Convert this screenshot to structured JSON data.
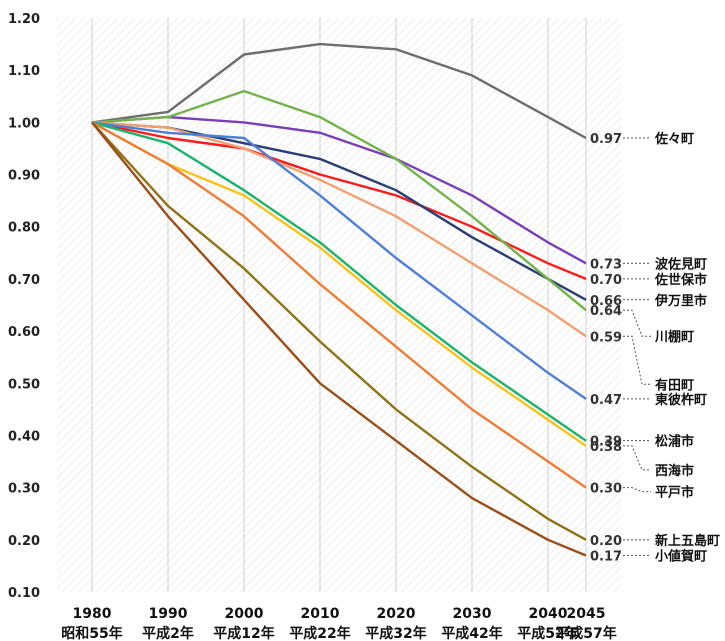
{
  "chart_data": {
    "type": "line",
    "title": "",
    "xlabel": "",
    "ylabel": "",
    "ylim": [
      0.1,
      1.2
    ],
    "yticks": [
      "0.10",
      "0.20",
      "0.30",
      "0.40",
      "0.50",
      "0.60",
      "0.70",
      "0.80",
      "0.90",
      "1.00",
      "1.10",
      "1.20"
    ],
    "x": [
      "1980",
      "1990",
      "2000",
      "2010",
      "2020",
      "2030",
      "2040",
      "2045"
    ],
    "x_era": [
      "昭和55年",
      "平成2年",
      "平成12年",
      "平成22年",
      "平成32年",
      "平成42年",
      "平成52年",
      "平成57年"
    ],
    "grid": "vertical lines on hatched background",
    "series": [
      {
        "name": "佐々町",
        "end_label": "0.97",
        "color": "#6d6d6d",
        "values": [
          1.0,
          1.02,
          1.13,
          1.15,
          1.14,
          1.09,
          1.01,
          0.97
        ]
      },
      {
        "name": "波佐見町",
        "end_label": "0.73",
        "color": "#7a3fb8",
        "values": [
          1.0,
          1.01,
          1.0,
          0.98,
          0.93,
          0.86,
          0.77,
          0.73
        ]
      },
      {
        "name": "佐世保市",
        "end_label": "0.70",
        "color": "#ff1a1a",
        "values": [
          1.0,
          0.97,
          0.95,
          0.9,
          0.86,
          0.8,
          0.73,
          0.7
        ]
      },
      {
        "name": "伊万里市",
        "end_label": "0.66",
        "color": "#2a3f78",
        "values": [
          1.0,
          0.99,
          0.96,
          0.93,
          0.87,
          0.78,
          0.7,
          0.66
        ]
      },
      {
        "name": "川棚町",
        "end_label": "0.64",
        "color": "#72b34a",
        "values": [
          1.0,
          1.01,
          1.06,
          1.01,
          0.93,
          0.82,
          0.7,
          0.64
        ]
      },
      {
        "name": "有田町",
        "end_label": "0.59",
        "color": "#f2a070",
        "values": [
          1.0,
          0.99,
          0.95,
          0.89,
          0.82,
          0.73,
          0.64,
          0.59
        ]
      },
      {
        "name": "東彼杵町",
        "end_label": "0.47",
        "color": "#4f7fd6",
        "values": [
          1.0,
          0.98,
          0.97,
          0.86,
          0.74,
          0.63,
          0.52,
          0.47
        ]
      },
      {
        "name": "松浦市",
        "end_label": "0.39",
        "color": "#1cb36e",
        "values": [
          1.0,
          0.96,
          0.87,
          0.77,
          0.65,
          0.54,
          0.44,
          0.39
        ]
      },
      {
        "name": "西海市",
        "end_label": "0.38",
        "color": "#f7c21a",
        "values": [
          1.0,
          0.92,
          0.86,
          0.76,
          0.64,
          0.53,
          0.43,
          0.38
        ]
      },
      {
        "name": "平戸市",
        "end_label": "0.30",
        "color": "#f07d36",
        "values": [
          1.0,
          0.92,
          0.82,
          0.69,
          0.57,
          0.45,
          0.35,
          0.3
        ]
      },
      {
        "name": "新上五島町",
        "end_label": "0.20",
        "color": "#8f7315",
        "values": [
          1.0,
          0.84,
          0.72,
          0.58,
          0.45,
          0.34,
          0.24,
          0.2
        ]
      },
      {
        "name": "小値賀町",
        "end_label": "0.17",
        "color": "#9c4e17",
        "values": [
          1.0,
          0.82,
          0.66,
          0.5,
          0.39,
          0.28,
          0.2,
          0.17
        ]
      }
    ]
  }
}
